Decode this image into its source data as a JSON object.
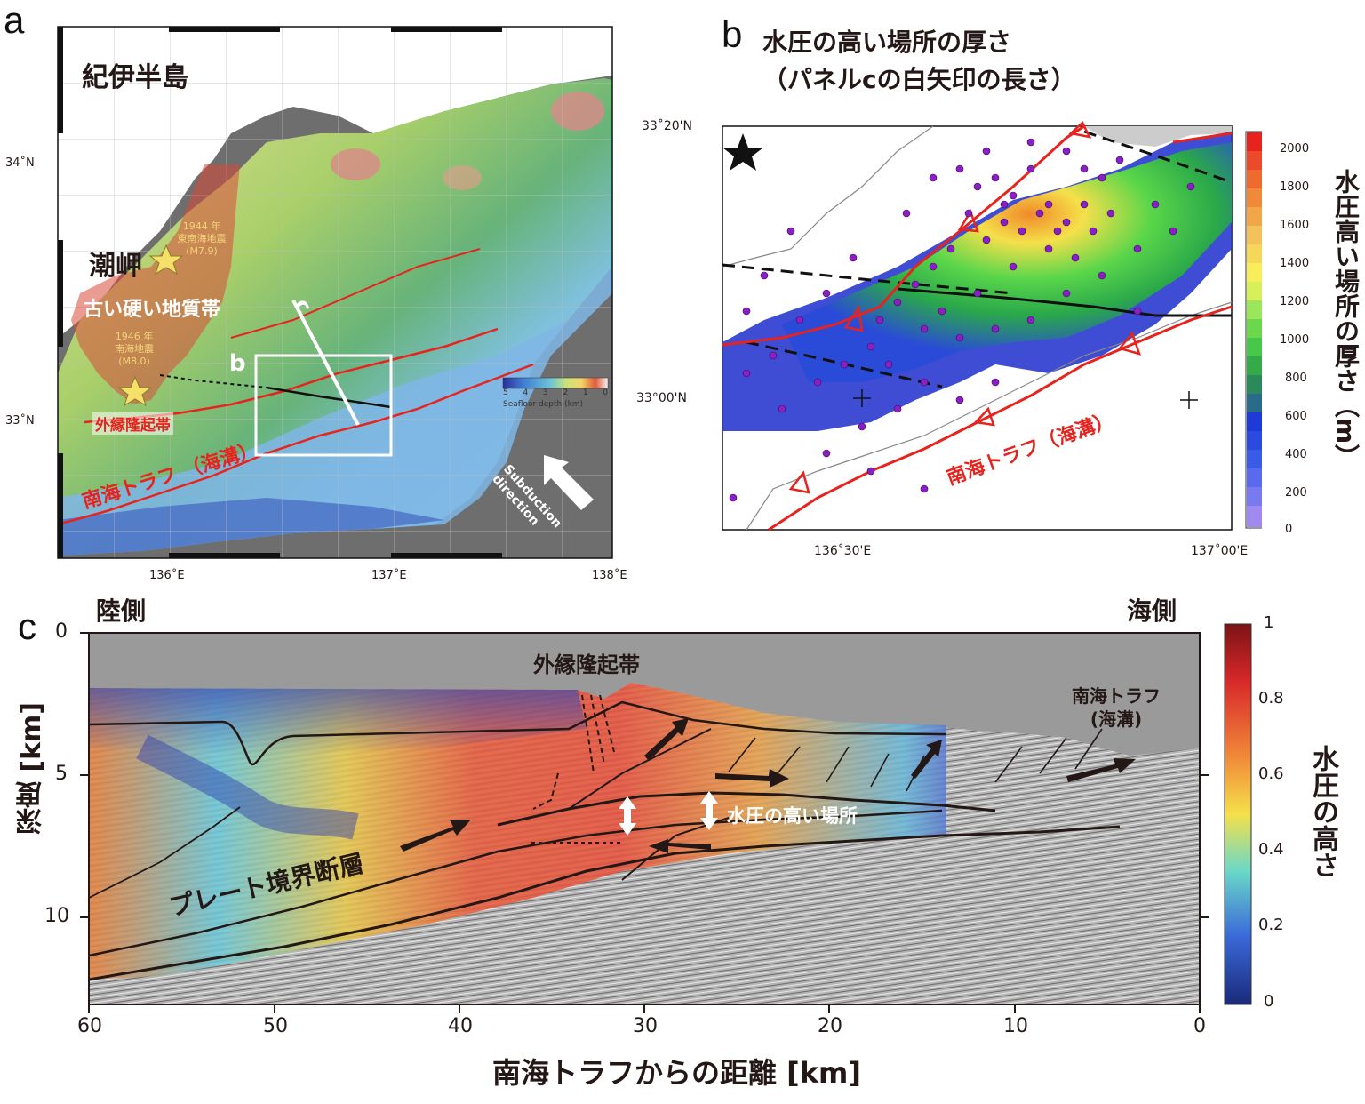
{
  "panel_a": {
    "label": "a",
    "region_title": "紀伊半島",
    "cape": "潮岬",
    "quake_1944": {
      "year": "1944 年",
      "name": "東南海地震",
      "mag": "(M7.9)"
    },
    "quake_1946": {
      "year": "1946 年",
      "name": "南海地震",
      "mag": "(M8.0)"
    },
    "old_hard_zone": "古い硬い地質帯",
    "outer_ridge": "外縁隆起帯",
    "trough": "南海トラフ （海溝）",
    "box_label": "b",
    "line_label": "c",
    "subduction_1": "Subduction",
    "subduction_2": "direction",
    "scale_title": "Seafloor depth (km)",
    "scale_ticks": [
      "5",
      "4",
      "3",
      "2",
      "1",
      "0"
    ],
    "lat_ticks": [
      "34˚N",
      "33˚N"
    ],
    "lon_ticks": [
      "136˚E",
      "137˚E",
      "138˚E"
    ],
    "colors": {
      "land": "#ffffff",
      "deep_sea": "#6e6e6e",
      "fault": "#e8231e",
      "star": "#f5e06a"
    }
  },
  "panel_b": {
    "label": "b",
    "title_1": "水圧の高い場所の厚さ",
    "title_2": "（パネルcの白矢印の長さ）",
    "lat_ticks": [
      "33˚20'N",
      "33°00'N"
    ],
    "lon_ticks": [
      "136˚30'E",
      "137˚00'E"
    ],
    "trough": "南海トラフ（海溝）",
    "colorbar_title": "水圧高い場所の厚さ（m）",
    "colorbar_ticks": [
      "2000",
      "1800",
      "1600",
      "1400",
      "1200",
      "1000",
      "800",
      "600",
      "400",
      "200",
      "0"
    ],
    "colors": {
      "events": "#8a1fc4",
      "fault": "#e8231e"
    }
  },
  "panel_c": {
    "label": "c",
    "land_side": "陸側",
    "sea_side": "海側",
    "outer_ridge": "外縁隆起帯",
    "trough_1": "南海トラフ",
    "trough_2": "(海溝)",
    "high_pressure": "水圧の高い場所",
    "plate_fault": "プレート境界断層",
    "y_label": "深度 [km]",
    "x_label": "南海トラフからの距離 [km]",
    "colorbar_title": "水圧の高さ",
    "colorbar_ticks": [
      "1",
      "0.8",
      "0.6",
      "0.4",
      "0.2",
      "0"
    ],
    "y_ticks": [
      "0",
      "5",
      "10"
    ],
    "x_ticks": [
      "60",
      "50",
      "40",
      "30",
      "20",
      "10",
      "0"
    ],
    "colors": {
      "water": "#9a9a9a"
    }
  }
}
